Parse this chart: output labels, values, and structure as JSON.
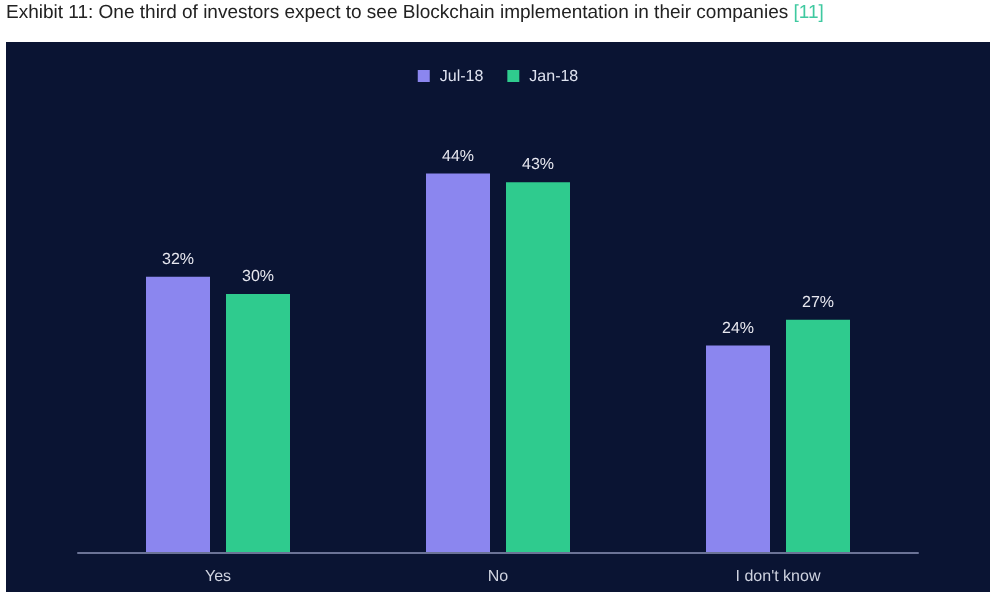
{
  "chart_data": {
    "type": "bar",
    "title": "Exhibit 11: One third of investors expect to see Blockchain implementation in their companies",
    "subtitle": "[11]",
    "categories": [
      "Yes",
      "No",
      "I don't know"
    ],
    "series": [
      {
        "name": "Jul-18",
        "color": "#8b86ef",
        "values": [
          32,
          44,
          24
        ],
        "value_labels": [
          "32%",
          "44%",
          "24%"
        ]
      },
      {
        "name": "Jan-18",
        "color": "#2fcb8e",
        "values": [
          30,
          43,
          27
        ],
        "value_labels": [
          "30%",
          "43%",
          "27%"
        ]
      }
    ],
    "legend": "top"
  }
}
